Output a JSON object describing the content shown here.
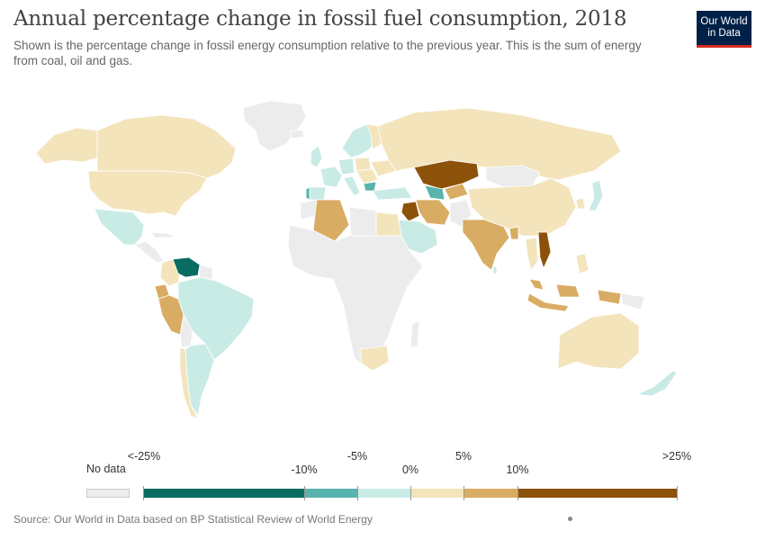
{
  "header": {
    "title": "Annual percentage change in fossil fuel consumption, 2018",
    "subtitle": "Shown is the percentage change in fossil energy consumption relative to the previous year. This is the sum of energy from coal, oil and gas."
  },
  "logo": {
    "line1": "Our World",
    "line2": "in Data"
  },
  "legend": {
    "no_data_label": "No data",
    "no_data_color": "#ececec",
    "bins": [
      {
        "color": "#086c60"
      },
      {
        "color": "#59b4ad"
      },
      {
        "color": "#c9ebe5"
      },
      {
        "color": "#f3e4bc"
      },
      {
        "color": "#d9ac63"
      },
      {
        "color": "#8c5209"
      }
    ],
    "labels": [
      "<-25%",
      "-10%",
      "-5%",
      "0%",
      "5%",
      "10%",
      ">25%"
    ]
  },
  "map_colors": {
    "no_data": "#ececec",
    "border": "#ffffff",
    "strong_decrease": "#086c60",
    "decrease": "#59b4ad",
    "slight_decrease": "#c9ebe5",
    "slight_increase": "#f3e4bc",
    "increase": "#d9ac63",
    "strong_increase": "#8c5209"
  },
  "footer": {
    "source": "Source: Our World in Data based on BP Statistical Review of World Energy"
  }
}
